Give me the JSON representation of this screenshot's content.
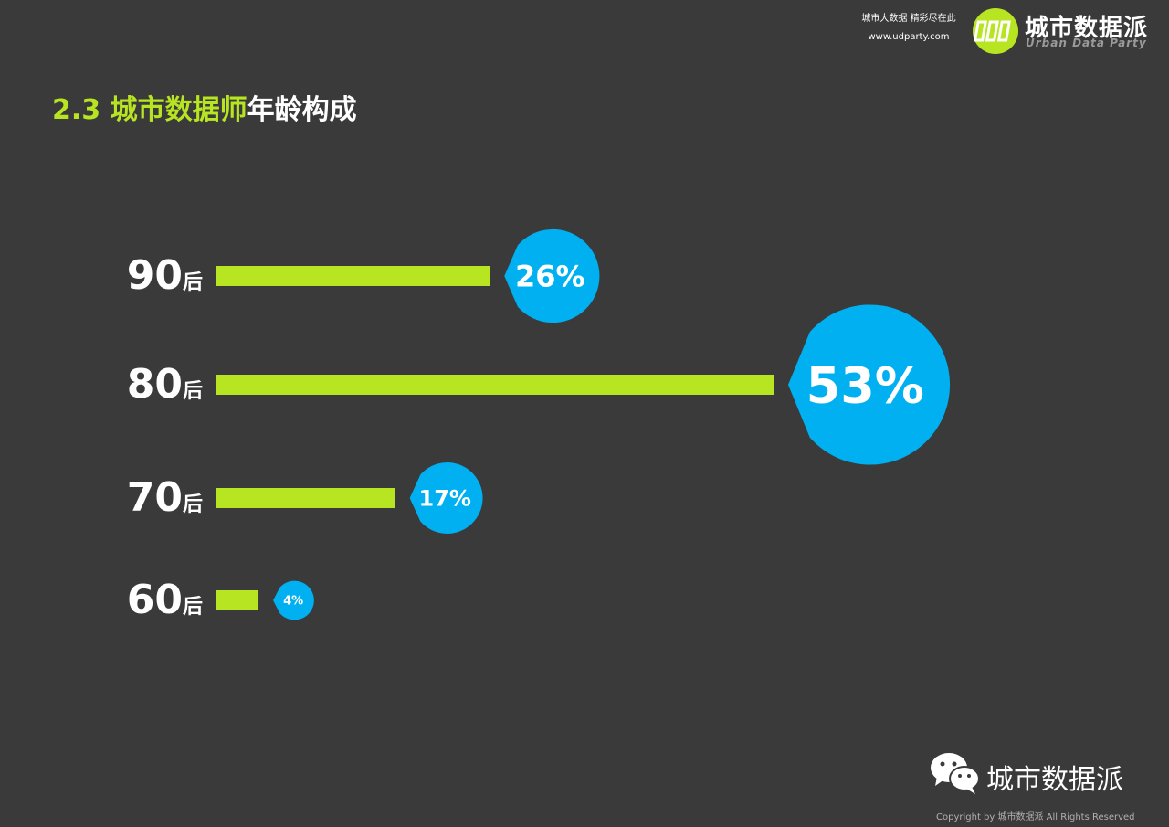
{
  "header": {
    "tagline": "城市大数据 精彩尽在此",
    "url": "www.udparty.com",
    "brand_name": "城市数据派",
    "brand_en": "Urban Data Party"
  },
  "title": {
    "prefix": "2.3 城市数据师",
    "suffix": "年龄构成"
  },
  "chart_data": {
    "type": "bar",
    "orientation": "horizontal",
    "categories": [
      "90后",
      "80后",
      "70后",
      "60后"
    ],
    "series": [
      {
        "values": [
          26,
          53,
          17,
          4
        ],
        "labels": [
          "26%",
          "53%",
          "17%",
          "4%"
        ]
      }
    ],
    "unit": "%",
    "category_parts": [
      {
        "num": "90",
        "suffix": "后"
      },
      {
        "num": "80",
        "suffix": "后"
      },
      {
        "num": "70",
        "suffix": "后"
      },
      {
        "num": "60",
        "suffix": "后"
      }
    ]
  },
  "footer": {
    "brand": "城市数据派",
    "copyright": "Copyright by 城市数据派 All Rights Reserved"
  },
  "colors": {
    "background": "#3a3a3a",
    "accent_green": "#b8e521",
    "bubble_blue": "#00b0f0",
    "text_white": "#ffffff"
  }
}
